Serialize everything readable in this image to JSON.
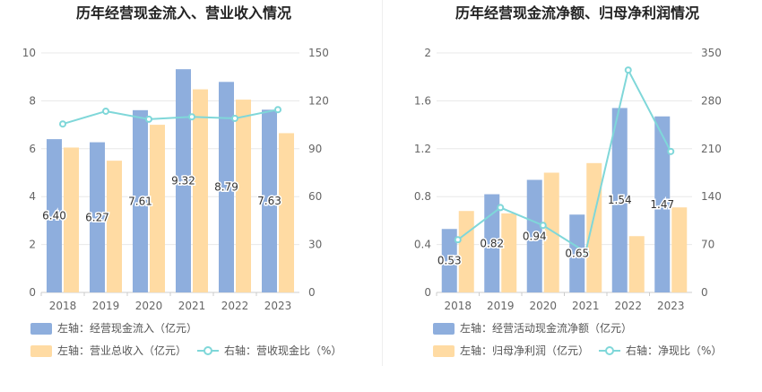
{
  "colors": {
    "inflow_bar": "#8eaedd",
    "revenue_bar": "#ffdba3",
    "ratio_line": "#7fd7d9",
    "grid": "#e8e8e8",
    "axis_text": "#666666",
    "title_text": "#222222",
    "legend_text": "#555555",
    "label_text": "#333333"
  },
  "chart_data": [
    {
      "type": "bar",
      "title": "历年经营现金流入、营业收入情况",
      "categories": [
        "2018",
        "2019",
        "2020",
        "2021",
        "2022",
        "2023"
      ],
      "left_axis": {
        "ylim": [
          0,
          10
        ],
        "ticks": [
          "0",
          "2",
          "4",
          "6",
          "8",
          "10"
        ]
      },
      "right_axis": {
        "ylim": [
          0,
          150
        ],
        "ticks": [
          "0",
          "30",
          "60",
          "90",
          "120",
          "150"
        ]
      },
      "series": [
        {
          "name": "左轴：经营现金流入（亿元）",
          "kind": "bar",
          "axis": "left",
          "values": [
            6.4,
            6.27,
            7.61,
            9.32,
            8.79,
            7.63
          ],
          "labels": [
            "6.40",
            "6.27",
            "7.61",
            "9.32",
            "8.79",
            "7.63"
          ]
        },
        {
          "name": "左轴：营业总收入（亿元）",
          "kind": "bar",
          "axis": "left",
          "values": [
            6.05,
            5.5,
            7.0,
            8.48,
            8.05,
            6.65
          ]
        },
        {
          "name": "右轴：营收现金比（%）",
          "kind": "line",
          "axis": "right",
          "values": [
            105.5,
            113.5,
            108.5,
            110,
            109,
            114.5
          ]
        }
      ]
    },
    {
      "type": "bar",
      "title": "历年经营现金流净额、归母净利润情况",
      "categories": [
        "2018",
        "2019",
        "2020",
        "2021",
        "2022",
        "2023"
      ],
      "left_axis": {
        "ylim": [
          0,
          2
        ],
        "ticks": [
          "0",
          "0.4",
          "0.8",
          "1.2",
          "1.6",
          "2"
        ]
      },
      "right_axis": {
        "ylim": [
          0,
          350
        ],
        "ticks": [
          "0",
          "70",
          "140",
          "210",
          "280",
          "350"
        ]
      },
      "series": [
        {
          "name": "左轴：经营活动现金流净额（亿元）",
          "kind": "bar",
          "axis": "left",
          "values": [
            0.53,
            0.82,
            0.94,
            0.65,
            1.54,
            1.47
          ],
          "labels": [
            "0.53",
            "0.82",
            "0.94",
            "0.65",
            "1.54",
            "1.47"
          ]
        },
        {
          "name": "左轴：归母净利润（亿元）",
          "kind": "bar",
          "axis": "left",
          "values": [
            0.68,
            0.66,
            1.0,
            1.08,
            0.47,
            0.71
          ]
        },
        {
          "name": "右轴：净现比（%）",
          "kind": "line",
          "axis": "right",
          "values": [
            77,
            124,
            98,
            59,
            325,
            206
          ]
        }
      ]
    }
  ]
}
